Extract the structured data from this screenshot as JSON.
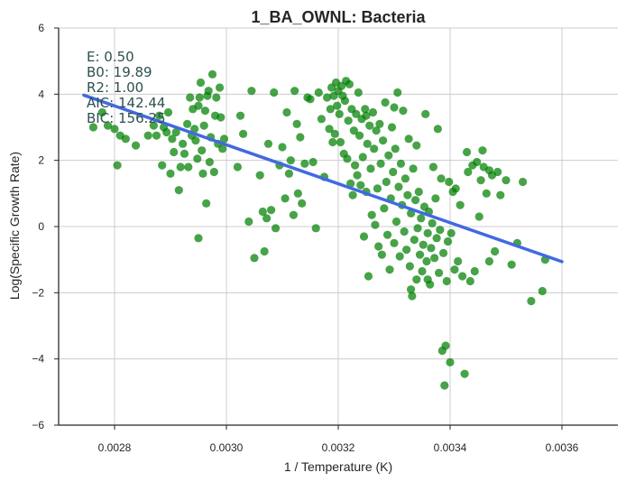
{
  "chart_data": {
    "type": "scatter",
    "title": "1_BA_OWNL: Bacteria",
    "xlabel": "1 / Temperature (K)",
    "ylabel": "Log(Specific Growth Rate)",
    "xlim": [
      0.0027,
      0.0037
    ],
    "ylim": [
      -6,
      6
    ],
    "x_ticks": [
      "0.0028",
      "0.0030",
      "0.0032",
      "0.0034",
      "0.0036"
    ],
    "x_tick_values": [
      0.0028,
      0.003,
      0.0032,
      0.0034,
      0.0036
    ],
    "y_ticks": [
      "−6",
      "−4",
      "−2",
      "0",
      "2",
      "4",
      "6"
    ],
    "y_tick_values": [
      -6,
      -4,
      -2,
      0,
      2,
      4,
      6
    ],
    "grid": true,
    "annotation": [
      "E:  0.50",
      "B0:  19.89",
      "R2:  1.00",
      "AIC:  142.44",
      "BIC:  156.25"
    ],
    "fit_line": {
      "color": "#4169e1",
      "x": [
        0.002745,
        0.0036
      ],
      "y": [
        3.97,
        -1.06
      ]
    },
    "marker_color": "#008000",
    "points": [
      [
        0.002762,
        3.0
      ],
      [
        0.002778,
        3.45
      ],
      [
        0.002788,
        3.05
      ],
      [
        0.0028,
        2.95
      ],
      [
        0.002805,
        1.85
      ],
      [
        0.00281,
        2.75
      ],
      [
        0.00282,
        2.65
      ],
      [
        0.002838,
        2.45
      ],
      [
        0.00286,
        2.75
      ],
      [
        0.00287,
        3.05
      ],
      [
        0.002875,
        2.75
      ],
      [
        0.00288,
        3.35
      ],
      [
        0.002885,
        1.85
      ],
      [
        0.002888,
        3.0
      ],
      [
        0.002893,
        2.85
      ],
      [
        0.002896,
        3.45
      ],
      [
        0.0029,
        1.6
      ],
      [
        0.002903,
        2.65
      ],
      [
        0.002906,
        2.25
      ],
      [
        0.00291,
        2.85
      ],
      [
        0.002915,
        1.1
      ],
      [
        0.002918,
        1.8
      ],
      [
        0.002922,
        2.5
      ],
      [
        0.002925,
        2.2
      ],
      [
        0.00293,
        3.1
      ],
      [
        0.002932,
        1.8
      ],
      [
        0.002935,
        3.9
      ],
      [
        0.002938,
        2.75
      ],
      [
        0.00294,
        3.55
      ],
      [
        0.002943,
        2.95
      ],
      [
        0.002945,
        2.6
      ],
      [
        0.002948,
        2.05
      ],
      [
        0.00295,
        3.65
      ],
      [
        0.002952,
        3.9
      ],
      [
        0.002954,
        4.35
      ],
      [
        0.002956,
        2.3
      ],
      [
        0.002958,
        1.6
      ],
      [
        0.00296,
        3.05
      ],
      [
        0.002962,
        3.5
      ],
      [
        0.002964,
        0.7
      ],
      [
        0.002966,
        3.95
      ],
      [
        0.002968,
        4.1
      ],
      [
        0.00297,
        1.95
      ],
      [
        0.002972,
        2.7
      ],
      [
        0.002975,
        4.6
      ],
      [
        0.002978,
        1.65
      ],
      [
        0.00298,
        3.35
      ],
      [
        0.002982,
        3.9
      ],
      [
        0.002985,
        2.5
      ],
      [
        0.002988,
        4.2
      ],
      [
        0.00299,
        3.3
      ],
      [
        0.002993,
        2.35
      ],
      [
        0.002996,
        2.65
      ],
      [
        0.00295,
        -0.35
      ],
      [
        0.00302,
        1.8
      ],
      [
        0.003025,
        3.35
      ],
      [
        0.00303,
        2.8
      ],
      [
        0.00304,
        0.15
      ],
      [
        0.003045,
        4.1
      ],
      [
        0.00305,
        -0.95
      ],
      [
        0.00306,
        1.55
      ],
      [
        0.003065,
        0.45
      ],
      [
        0.003068,
        -0.75
      ],
      [
        0.003072,
        0.25
      ],
      [
        0.003075,
        2.5
      ],
      [
        0.00308,
        0.5
      ],
      [
        0.003085,
        4.05
      ],
      [
        0.003088,
        -0.05
      ],
      [
        0.003095,
        1.85
      ],
      [
        0.0031,
        2.4
      ],
      [
        0.003105,
        0.85
      ],
      [
        0.003108,
        3.45
      ],
      [
        0.003112,
        1.6
      ],
      [
        0.003115,
        2.0
      ],
      [
        0.00312,
        0.35
      ],
      [
        0.003122,
        4.1
      ],
      [
        0.003126,
        3.1
      ],
      [
        0.003128,
        1.0
      ],
      [
        0.003132,
        2.7
      ],
      [
        0.003135,
        0.7
      ],
      [
        0.00314,
        1.9
      ],
      [
        0.003145,
        3.9
      ],
      [
        0.00315,
        3.85
      ],
      [
        0.003155,
        1.95
      ],
      [
        0.00316,
        -0.05
      ],
      [
        0.003165,
        4.05
      ],
      [
        0.00317,
        3.25
      ],
      [
        0.003175,
        1.5
      ],
      [
        0.00318,
        3.9
      ],
      [
        0.003184,
        2.95
      ],
      [
        0.003186,
        3.55
      ],
      [
        0.003188,
        4.2
      ],
      [
        0.00319,
        2.55
      ],
      [
        0.003192,
        3.95
      ],
      [
        0.003194,
        2.8
      ],
      [
        0.003196,
        4.35
      ],
      [
        0.003198,
        3.65
      ],
      [
        0.0032,
        4.1
      ],
      [
        0.003202,
        3.4
      ],
      [
        0.003204,
        2.55
      ],
      [
        0.003206,
        4.25
      ],
      [
        0.003208,
        3.95
      ],
      [
        0.00321,
        2.2
      ],
      [
        0.003212,
        3.8
      ],
      [
        0.003214,
        4.4
      ],
      [
        0.003216,
        2.05
      ],
      [
        0.003218,
        3.2
      ],
      [
        0.00322,
        4.3
      ],
      [
        0.003222,
        1.3
      ],
      [
        0.003224,
        3.55
      ],
      [
        0.003226,
        0.95
      ],
      [
        0.003228,
        2.9
      ],
      [
        0.00323,
        1.85
      ],
      [
        0.003232,
        3.4
      ],
      [
        0.003234,
        1.55
      ],
      [
        0.003236,
        4.05
      ],
      [
        0.003238,
        2.75
      ],
      [
        0.00324,
        1.25
      ],
      [
        0.003242,
        3.25
      ],
      [
        0.003244,
        2.1
      ],
      [
        0.003246,
        -0.3
      ],
      [
        0.003248,
        3.55
      ],
      [
        0.00325,
        1.05
      ],
      [
        0.003252,
        2.5
      ],
      [
        0.003254,
        -1.5
      ],
      [
        0.003256,
        3.05
      ],
      [
        0.003258,
        1.75
      ],
      [
        0.00326,
        0.35
      ],
      [
        0.003262,
        3.45
      ],
      [
        0.003264,
        2.35
      ],
      [
        0.003266,
        0.05
      ],
      [
        0.003268,
        2.9
      ],
      [
        0.00327,
        1.15
      ],
      [
        0.003272,
        -0.6
      ],
      [
        0.003274,
        3.1
      ],
      [
        0.003276,
        1.9
      ],
      [
        0.003278,
        -0.85
      ],
      [
        0.00328,
        2.6
      ],
      [
        0.003282,
        0.55
      ],
      [
        0.003284,
        3.75
      ],
      [
        0.003286,
        1.35
      ],
      [
        0.003288,
        -0.25
      ],
      [
        0.00329,
        2.15
      ],
      [
        0.003292,
        -1.3
      ],
      [
        0.003294,
        0.85
      ],
      [
        0.003296,
        3.0
      ],
      [
        0.003298,
        1.65
      ],
      [
        0.0033,
        -0.5
      ],
      [
        0.003302,
        2.35
      ],
      [
        0.003304,
        0.15
      ],
      [
        0.003306,
        4.05
      ],
      [
        0.003308,
        1.2
      ],
      [
        0.00331,
        -0.9
      ],
      [
        0.003312,
        1.9
      ],
      [
        0.003314,
        0.65
      ],
      [
        0.003316,
        3.5
      ],
      [
        0.003318,
        -0.15
      ],
      [
        0.00332,
        1.45
      ],
      [
        0.003322,
        -0.7
      ],
      [
        0.003324,
        0.95
      ],
      [
        0.003326,
        2.65
      ],
      [
        0.003328,
        -1.2
      ],
      [
        0.00333,
        0.4
      ],
      [
        0.003332,
        -2.1
      ],
      [
        0.003334,
        1.75
      ],
      [
        0.003336,
        -0.4
      ],
      [
        0.003338,
        0.8
      ],
      [
        0.00334,
        -1.6
      ],
      [
        0.003342,
        -0.05
      ],
      [
        0.003344,
        1.05
      ],
      [
        0.003346,
        -0.85
      ],
      [
        0.003348,
        0.25
      ],
      [
        0.00335,
        -1.35
      ],
      [
        0.003352,
        -0.55
      ],
      [
        0.003354,
        0.6
      ],
      [
        0.003356,
        3.4
      ],
      [
        0.003358,
        -1.05
      ],
      [
        0.00336,
        -0.2
      ],
      [
        0.003362,
        0.45
      ],
      [
        0.003364,
        -1.75
      ],
      [
        0.003366,
        -0.65
      ],
      [
        0.003368,
        0.1
      ],
      [
        0.00337,
        1.8
      ],
      [
        0.003372,
        -0.95
      ],
      [
        0.003374,
        0.85
      ],
      [
        0.003376,
        -0.35
      ],
      [
        0.003378,
        2.95
      ],
      [
        0.00338,
        -1.4
      ],
      [
        0.003382,
        -0.1
      ],
      [
        0.003384,
        1.45
      ],
      [
        0.003386,
        -3.75
      ],
      [
        0.003388,
        -0.8
      ],
      [
        0.00339,
        -4.8
      ],
      [
        0.003392,
        -3.6
      ],
      [
        0.003394,
        -1.65
      ],
      [
        0.003396,
        -0.45
      ],
      [
        0.003398,
        1.35
      ],
      [
        0.0034,
        -4.1
      ],
      [
        0.003402,
        -0.2
      ],
      [
        0.003405,
        1.05
      ],
      [
        0.003408,
        -1.3
      ],
      [
        0.00341,
        1.15
      ],
      [
        0.003414,
        -1.05
      ],
      [
        0.003418,
        0.65
      ],
      [
        0.003422,
        -1.5
      ],
      [
        0.003426,
        -4.45
      ],
      [
        0.00343,
        2.25
      ],
      [
        0.003432,
        1.65
      ],
      [
        0.003436,
        -1.65
      ],
      [
        0.00344,
        1.85
      ],
      [
        0.003444,
        -1.35
      ],
      [
        0.003448,
        1.95
      ],
      [
        0.003452,
        0.3
      ],
      [
        0.003455,
        1.4
      ],
      [
        0.003458,
        2.3
      ],
      [
        0.00346,
        1.8
      ],
      [
        0.003465,
        1.0
      ],
      [
        0.00347,
        -1.05
      ],
      [
        0.003475,
        1.55
      ],
      [
        0.00348,
        -0.75
      ],
      [
        0.003485,
        1.65
      ],
      [
        0.00349,
        0.95
      ],
      [
        0.0035,
        1.4
      ],
      [
        0.00351,
        -1.15
      ],
      [
        0.00352,
        -0.5
      ],
      [
        0.00353,
        1.35
      ],
      [
        0.003545,
        -2.25
      ],
      [
        0.003565,
        -1.95
      ],
      [
        0.00357,
        -1.0
      ],
      [
        0.00334,
        2.45
      ],
      [
        0.00347,
        1.7
      ],
      [
        0.00336,
        -1.6
      ],
      [
        0.00333,
        -1.9
      ],
      [
        0.00325,
        3.35
      ],
      [
        0.0033,
        3.6
      ]
    ]
  }
}
